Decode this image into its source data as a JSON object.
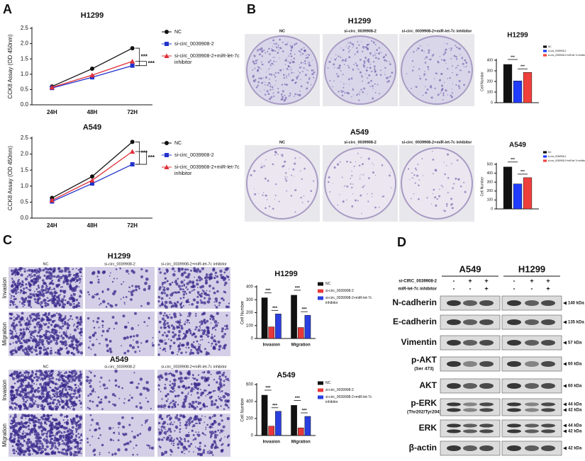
{
  "panel_labels": [
    "A",
    "B",
    "C",
    "D"
  ],
  "chart_data": [
    {
      "type": "line",
      "title": "H1299",
      "ylabel": "CCK8 Assay (OD 450nm)",
      "categories": [
        "24H",
        "48H",
        "72H"
      ],
      "series": [
        {
          "name": "NC",
          "color": "#111111",
          "marker": "circle",
          "values": [
            0.6,
            1.18,
            1.85
          ]
        },
        {
          "name": "si-circ_0039908-2",
          "color": "#2233cc",
          "marker": "square",
          "values": [
            0.55,
            0.9,
            1.28
          ]
        },
        {
          "name": "si-circ_0039908-2+miR-let-7c inhibitor",
          "color": "#e0303a",
          "marker": "triangle",
          "values": [
            0.57,
            0.97,
            1.42
          ]
        }
      ],
      "ylim": [
        0,
        2.5
      ],
      "yticks": [
        {
          "value": 0,
          "label": "0.0"
        },
        0.5,
        {
          "value": 1,
          "label": "1.0"
        },
        1.5,
        {
          "value": 2,
          "label": "2.0"
        },
        2.5
      ],
      "annotations": [
        "***",
        "***"
      ]
    },
    {
      "type": "line",
      "title": "A549",
      "ylabel": "CCK8 Assay (OD 450nm)",
      "categories": [
        "24H",
        "48H",
        "72H"
      ],
      "series": [
        {
          "name": "NC",
          "color": "#111111",
          "marker": "circle",
          "values": [
            0.63,
            1.3,
            2.38
          ]
        },
        {
          "name": "si-circ_0039908-2",
          "color": "#2233cc",
          "marker": "square",
          "values": [
            0.52,
            1.08,
            1.68
          ]
        },
        {
          "name": "si-circ_0039908-2+miR-let-7c inhibitor",
          "color": "#e0303a",
          "marker": "triangle",
          "values": [
            0.56,
            1.18,
            2.08
          ]
        }
      ],
      "ylim": [
        0,
        2.5
      ],
      "yticks": [
        {
          "value": 0,
          "label": "0.0"
        },
        0.5,
        {
          "value": 1,
          "label": "1.0"
        },
        1.5,
        {
          "value": 2,
          "label": "2.0"
        },
        2.5
      ],
      "annotations": [
        "***",
        "***"
      ]
    },
    {
      "type": "bar",
      "title": "H1299",
      "ylabel": "Cell Number",
      "categories": [
        null
      ],
      "series": [
        {
          "name": "NC",
          "color": "#111111",
          "values": [
            360
          ]
        },
        {
          "name": "si-circ_0039908-2",
          "color": "#1f3cff",
          "values": [
            205
          ]
        },
        {
          "name": "si-circ_0039908-2+miR-let-7c inhibitor",
          "color": "#f0403c",
          "values": [
            285
          ]
        }
      ],
      "ylim": [
        0,
        400
      ],
      "yticks": [
        0,
        100,
        200,
        300,
        400
      ],
      "annotations": [
        "***",
        "***"
      ]
    },
    {
      "type": "bar",
      "title": "A549",
      "ylabel": "Cell Number",
      "categories": [
        null
      ],
      "series": [
        {
          "name": "NC",
          "color": "#111111",
          "values": [
            470
          ]
        },
        {
          "name": "si-circ_0039908-2",
          "color": "#1f3cff",
          "values": [
            280
          ]
        },
        {
          "name": "si-circ_0039908-2+miR-let-7c inhibitor",
          "color": "#f0403c",
          "values": [
            350
          ]
        }
      ],
      "ylim": [
        0,
        500
      ],
      "yticks": [
        0,
        100,
        200,
        300,
        400,
        500
      ],
      "annotations": [
        "***",
        "***"
      ]
    },
    {
      "type": "bar",
      "title": "H1299",
      "ylabel": "Cell Number",
      "categories": [
        "Invasion",
        "Migration"
      ],
      "series": [
        {
          "name": "NC",
          "color": "#111111",
          "values": [
            315,
            335
          ]
        },
        {
          "name": "si-circ_0039908-2",
          "color": "#e8393a",
          "values": [
            90,
            85
          ]
        },
        {
          "name": "si-circ_0039908-2+miR-let-7c inhibitor",
          "color": "#2a3fe0",
          "values": [
            190,
            180
          ]
        }
      ],
      "ylim": [
        0,
        400
      ],
      "yticks": [
        0,
        100,
        200,
        300,
        400
      ],
      "annotations": [
        "***",
        "***",
        "***",
        "***"
      ]
    },
    {
      "type": "bar",
      "title": "A549",
      "ylabel": "Cell Number",
      "categories": [
        "Invasion",
        "Migration"
      ],
      "series": [
        {
          "name": "NC",
          "color": "#111111",
          "values": [
            475,
            355
          ]
        },
        {
          "name": "si-circ_0039908-2",
          "color": "#e8393a",
          "values": [
            110,
            90
          ]
        },
        {
          "name": "si-circ_0039908-2+miR-let-7c inhibitor",
          "color": "#2a3fe0",
          "values": [
            285,
            225
          ]
        }
      ],
      "ylim": [
        0,
        600
      ],
      "yticks": [
        0,
        200,
        400,
        600
      ],
      "annotations": [
        "***",
        "***",
        "***",
        "***"
      ]
    }
  ],
  "colony_images": {
    "titles": [
      "H1299",
      "A549"
    ],
    "conditions": [
      "NC",
      "si-circ_0039908-2",
      "si-circ_0039908-2+miR-let-7c inhibitor"
    ]
  },
  "transwell_images": {
    "titles": [
      "H1299",
      "A549"
    ],
    "rows": [
      "Invasion",
      "Migration"
    ],
    "conditions": [
      "NC",
      "si-circ_0039908-2",
      "si-circ_0039908-2+miR-let-7c inhibitor"
    ]
  },
  "western_blot": {
    "cell_lines": [
      "A549",
      "H1299"
    ],
    "treatments": [
      {
        "label": "si-CIRC_0039908-2",
        "signs": [
          "-",
          "+",
          "+"
        ]
      },
      {
        "label": "miR-let-7c inhibitor",
        "signs": [
          "-",
          "-",
          "+"
        ]
      }
    ],
    "proteins": [
      {
        "name": "N-cadherin",
        "sizes": [
          "140 kDa"
        ]
      },
      {
        "name": "E-cadherin",
        "sizes": [
          "135 kDa"
        ]
      },
      {
        "name": "Vimentin",
        "sizes": [
          "57 kDa"
        ]
      },
      {
        "name": "p-AKT",
        "site": "(Ser 473)",
        "sizes": [
          "60 kDa"
        ]
      },
      {
        "name": "AKT",
        "sizes": [
          "60 kDa"
        ]
      },
      {
        "name": "p-ERK",
        "site": "(Thr202/Tyr204)",
        "sizes": [
          "44 kDa",
          "42 kDa"
        ]
      },
      {
        "name": "ERK",
        "sizes": [
          "44 kDa",
          "42 kDa"
        ]
      },
      {
        "name": "β-actin",
        "sizes": [
          "42 kDa"
        ]
      }
    ]
  }
}
